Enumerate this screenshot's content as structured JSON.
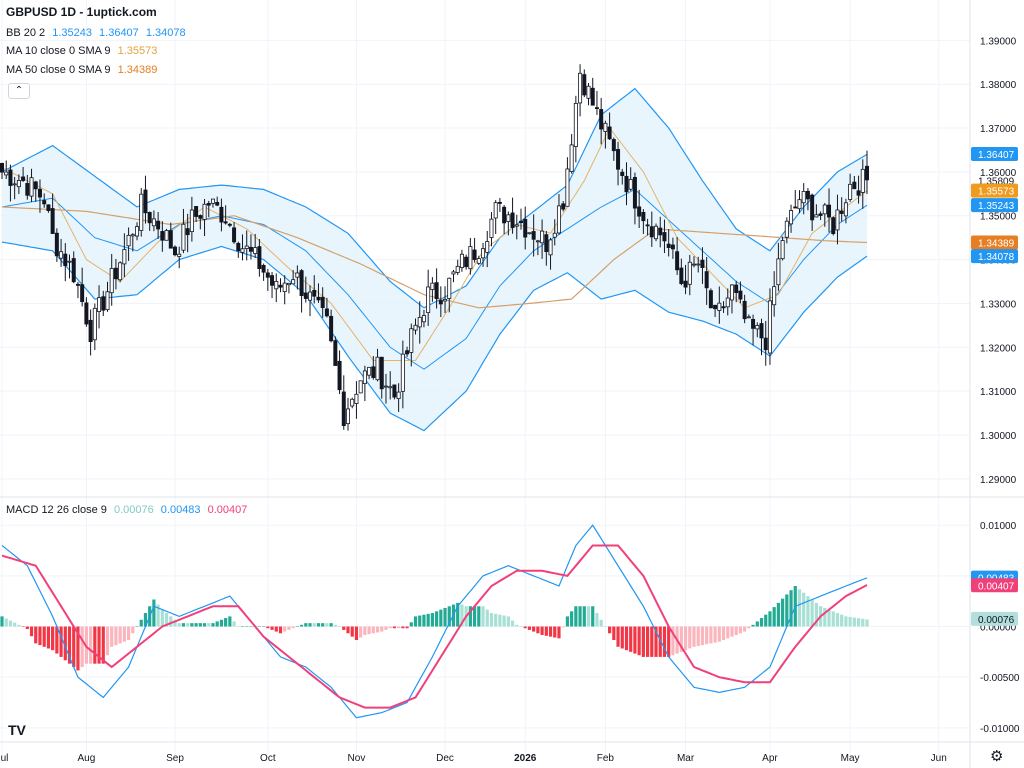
{
  "header": {
    "title": "GBPUSD 1D - 1uptick.com",
    "bb": {
      "label": "BB 20 2",
      "v1": "1.35243",
      "v2": "1.36407",
      "v3": "1.34078"
    },
    "ma10": {
      "label": "MA 10 close 0 SMA 9",
      "value": "1.35573"
    },
    "ma50": {
      "label": "MA 50 close 0 SMA 9",
      "value": "1.34389"
    }
  },
  "macd_legend": {
    "label": "MACD 12 26 close 9",
    "hist": "0.00076",
    "macd": "0.00483",
    "signal": "0.00407"
  },
  "colors": {
    "bb": "#2196f3",
    "bb_fill": "#e3f2fd",
    "ma10": "#e6b36a",
    "ma50": "#d4a06a",
    "up": "#ffffff",
    "down": "#131722",
    "macd": "#2196f3",
    "signal": "#f0407a",
    "hist_up_strong": "#22ab94",
    "hist_up_weak": "#a8e0d6",
    "hist_down_strong": "#f23645",
    "hist_down_weak": "#fbb5bd",
    "badge_bb": "#2196f3",
    "badge_ma": "#f09b1e",
    "badge_ma50": "#e67e22",
    "badge_signal": "#f0407a",
    "badge_hist": "#b2dfdb"
  },
  "icons": {
    "collapse": "chevron-up-icon",
    "logo": "tradingview-logo",
    "settings": "gear-icon"
  },
  "collapse_glyph": "⌃",
  "logo_text": "TV",
  "gear_glyph": "⚙",
  "chart_data": {
    "type": "candlestick",
    "price_axis": {
      "ticks": [
        "1.39000",
        "1.38000",
        "1.37000",
        "1.36000",
        "1.35000",
        "1.34000",
        "1.33000",
        "1.32000",
        "1.31000",
        "1.30000",
        "1.29000"
      ],
      "range": [
        1.287,
        1.3935
      ]
    },
    "macd_axis": {
      "ticks": [
        "0.01000",
        "0.00500",
        "0.00000",
        "-0.00500",
        "-0.01000"
      ],
      "range": [
        -0.0112,
        0.0115
      ]
    },
    "x_labels": [
      "Jul",
      "Aug",
      "Sep",
      "Oct",
      "Nov",
      "Dec",
      "2026",
      "Feb",
      "Mar",
      "Apr",
      "May",
      "Jun"
    ],
    "price_badges": [
      {
        "text": "1.36407",
        "value": 1.36407,
        "color": "badge_bb"
      },
      {
        "text": "1.35809",
        "value": 1.35809,
        "color": "none"
      },
      {
        "text": "1.35573",
        "value": 1.35573,
        "color": "badge_ma"
      },
      {
        "text": "1.35243",
        "value": 1.35243,
        "color": "badge_bb"
      },
      {
        "text": "1.34389",
        "value": 1.34389,
        "color": "badge_ma50"
      },
      {
        "text": "1.34078",
        "value": 1.34078,
        "color": "badge_bb"
      }
    ],
    "macd_badges": [
      {
        "text": "0.00483",
        "value": 0.00483,
        "color": "badge_bb"
      },
      {
        "text": "0.00407",
        "value": 0.00407,
        "color": "badge_signal"
      },
      {
        "text": "0.00076",
        "value": 0.00076,
        "color": "badge_hist"
      }
    ],
    "close_anchors": [
      [
        0,
        1.36
      ],
      [
        5,
        1.358
      ],
      [
        10,
        1.354
      ],
      [
        12,
        1.345
      ],
      [
        17,
        1.337
      ],
      [
        21,
        1.324
      ],
      [
        25,
        1.333
      ],
      [
        29,
        1.342
      ],
      [
        33,
        1.352
      ],
      [
        37,
        1.348
      ],
      [
        41,
        1.342
      ],
      [
        45,
        1.349
      ],
      [
        49,
        1.353
      ],
      [
        53,
        1.35
      ],
      [
        57,
        1.343
      ],
      [
        61,
        1.339
      ],
      [
        65,
        1.333
      ],
      [
        69,
        1.337
      ],
      [
        73,
        1.331
      ],
      [
        77,
        1.325
      ],
      [
        81,
        1.305
      ],
      [
        85,
        1.313
      ],
      [
        89,
        1.315
      ],
      [
        93,
        1.309
      ],
      [
        97,
        1.322
      ],
      [
        101,
        1.332
      ],
      [
        105,
        1.333
      ],
      [
        109,
        1.339
      ],
      [
        113,
        1.343
      ],
      [
        117,
        1.351
      ],
      [
        121,
        1.35
      ],
      [
        125,
        1.347
      ],
      [
        129,
        1.344
      ],
      [
        133,
        1.354
      ],
      [
        137,
        1.383
      ],
      [
        141,
        1.373
      ],
      [
        145,
        1.364
      ],
      [
        149,
        1.356
      ],
      [
        153,
        1.349
      ],
      [
        157,
        1.345
      ],
      [
        161,
        1.335
      ],
      [
        165,
        1.339
      ],
      [
        169,
        1.326
      ],
      [
        173,
        1.333
      ],
      [
        177,
        1.324
      ],
      [
        181,
        1.322
      ],
      [
        185,
        1.345
      ],
      [
        189,
        1.354
      ],
      [
        193,
        1.351
      ],
      [
        197,
        1.348
      ],
      [
        201,
        1.357
      ],
      [
        205,
        1.3581
      ]
    ],
    "ma10_anchors": [
      [
        0,
        1.361
      ],
      [
        12,
        1.355
      ],
      [
        20,
        1.34
      ],
      [
        28,
        1.335
      ],
      [
        38,
        1.345
      ],
      [
        48,
        1.352
      ],
      [
        58,
        1.347
      ],
      [
        68,
        1.338
      ],
      [
        78,
        1.33
      ],
      [
        88,
        1.317
      ],
      [
        98,
        1.317
      ],
      [
        106,
        1.329
      ],
      [
        114,
        1.342
      ],
      [
        122,
        1.348
      ],
      [
        130,
        1.346
      ],
      [
        138,
        1.358
      ],
      [
        144,
        1.37
      ],
      [
        152,
        1.36
      ],
      [
        160,
        1.345
      ],
      [
        168,
        1.337
      ],
      [
        176,
        1.329
      ],
      [
        184,
        1.332
      ],
      [
        192,
        1.346
      ],
      [
        200,
        1.352
      ],
      [
        205,
        1.3557
      ]
    ],
    "ma50_anchors": [
      [
        0,
        1.352
      ],
      [
        20,
        1.351
      ],
      [
        40,
        1.348
      ],
      [
        55,
        1.35
      ],
      [
        70,
        1.345
      ],
      [
        85,
        1.339
      ],
      [
        100,
        1.332
      ],
      [
        113,
        1.329
      ],
      [
        125,
        1.33
      ],
      [
        135,
        1.331
      ],
      [
        145,
        1.34
      ],
      [
        155,
        1.347
      ],
      [
        170,
        1.346
      ],
      [
        185,
        1.345
      ],
      [
        195,
        1.3443
      ],
      [
        205,
        1.3439
      ]
    ],
    "bb_mid_anchors": [
      [
        0,
        1.352
      ],
      [
        12,
        1.354
      ],
      [
        22,
        1.345
      ],
      [
        32,
        1.342
      ],
      [
        42,
        1.348
      ],
      [
        52,
        1.35
      ],
      [
        62,
        1.348
      ],
      [
        72,
        1.342
      ],
      [
        82,
        1.332
      ],
      [
        92,
        1.32
      ],
      [
        100,
        1.315
      ],
      [
        110,
        1.322
      ],
      [
        118,
        1.334
      ],
      [
        126,
        1.342
      ],
      [
        134,
        1.347
      ],
      [
        142,
        1.352
      ],
      [
        150,
        1.356
      ],
      [
        158,
        1.349
      ],
      [
        166,
        1.342
      ],
      [
        174,
        1.335
      ],
      [
        182,
        1.33
      ],
      [
        190,
        1.34
      ],
      [
        198,
        1.348
      ],
      [
        205,
        1.3524
      ]
    ],
    "bb_width_anchors": [
      [
        0,
        0.008
      ],
      [
        12,
        0.012
      ],
      [
        22,
        0.014
      ],
      [
        32,
        0.01
      ],
      [
        42,
        0.008
      ],
      [
        52,
        0.007
      ],
      [
        62,
        0.008
      ],
      [
        72,
        0.01
      ],
      [
        82,
        0.014
      ],
      [
        92,
        0.015
      ],
      [
        100,
        0.014
      ],
      [
        110,
        0.012
      ],
      [
        118,
        0.011
      ],
      [
        126,
        0.009
      ],
      [
        134,
        0.01
      ],
      [
        142,
        0.021
      ],
      [
        150,
        0.023
      ],
      [
        158,
        0.021
      ],
      [
        166,
        0.016
      ],
      [
        174,
        0.012
      ],
      [
        182,
        0.012
      ],
      [
        190,
        0.012
      ],
      [
        198,
        0.012
      ],
      [
        205,
        0.0116
      ]
    ],
    "macd_anchors": [
      [
        0,
        0.008
      ],
      [
        6,
        0.006
      ],
      [
        12,
        0.001
      ],
      [
        18,
        -0.005
      ],
      [
        24,
        -0.007
      ],
      [
        30,
        -0.004
      ],
      [
        36,
        0.002
      ],
      [
        42,
        0.001
      ],
      [
        48,
        0.002
      ],
      [
        54,
        0.003
      ],
      [
        60,
        0.0
      ],
      [
        66,
        -0.003
      ],
      [
        72,
        -0.004
      ],
      [
        78,
        -0.006
      ],
      [
        84,
        -0.009
      ],
      [
        90,
        -0.0085
      ],
      [
        96,
        -0.0075
      ],
      [
        102,
        -0.003
      ],
      [
        108,
        0.002
      ],
      [
        114,
        0.005
      ],
      [
        120,
        0.006
      ],
      [
        126,
        0.005
      ],
      [
        132,
        0.004
      ],
      [
        136,
        0.008
      ],
      [
        140,
        0.01
      ],
      [
        146,
        0.006
      ],
      [
        152,
        0.002
      ],
      [
        158,
        -0.003
      ],
      [
        164,
        -0.006
      ],
      [
        170,
        -0.0065
      ],
      [
        176,
        -0.006
      ],
      [
        182,
        -0.004
      ],
      [
        188,
        0.002
      ],
      [
        194,
        0.003
      ],
      [
        200,
        0.004
      ],
      [
        205,
        0.0048
      ]
    ],
    "signal_anchors": [
      [
        0,
        0.007
      ],
      [
        8,
        0.006
      ],
      [
        14,
        0.002
      ],
      [
        20,
        -0.002
      ],
      [
        26,
        -0.004
      ],
      [
        32,
        -0.002
      ],
      [
        38,
        0.0
      ],
      [
        44,
        0.001
      ],
      [
        50,
        0.002
      ],
      [
        56,
        0.002
      ],
      [
        62,
        -0.001
      ],
      [
        68,
        -0.003
      ],
      [
        74,
        -0.005
      ],
      [
        80,
        -0.007
      ],
      [
        86,
        -0.008
      ],
      [
        92,
        -0.008
      ],
      [
        98,
        -0.007
      ],
      [
        104,
        -0.003
      ],
      [
        110,
        0.001
      ],
      [
        116,
        0.004
      ],
      [
        122,
        0.0055
      ],
      [
        128,
        0.0055
      ],
      [
        134,
        0.005
      ],
      [
        140,
        0.008
      ],
      [
        146,
        0.008
      ],
      [
        152,
        0.005
      ],
      [
        158,
        0.0
      ],
      [
        164,
        -0.004
      ],
      [
        170,
        -0.005
      ],
      [
        176,
        -0.0055
      ],
      [
        182,
        -0.0055
      ],
      [
        188,
        -0.002
      ],
      [
        194,
        0.001
      ],
      [
        200,
        0.003
      ],
      [
        205,
        0.0041
      ]
    ],
    "num_bars": 206,
    "x_label_bars": [
      0,
      20,
      41,
      63,
      84,
      105,
      124,
      143,
      162,
      182,
      201,
      222
    ]
  }
}
